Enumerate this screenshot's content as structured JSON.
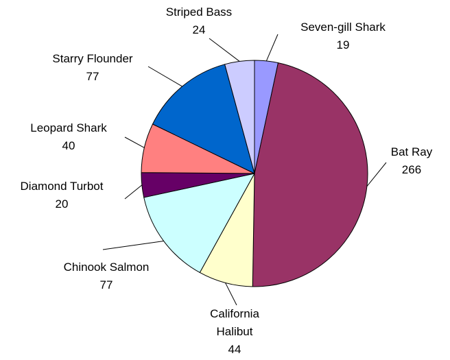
{
  "chart_data": {
    "type": "pie",
    "categories": [
      "Seven-gill Shark",
      "Bat Ray",
      "California Halibut",
      "Chinook Salmon",
      "Diamond Turbot",
      "Leopard Shark",
      "Starry Flounder",
      "Striped Bass"
    ],
    "values": [
      19,
      266,
      44,
      77,
      20,
      40,
      77,
      24
    ],
    "colors": [
      "#9999ff",
      "#993366",
      "#ffffcc",
      "#ccffff",
      "#660066",
      "#ff8080",
      "#0066cc",
      "#ccccff"
    ]
  }
}
